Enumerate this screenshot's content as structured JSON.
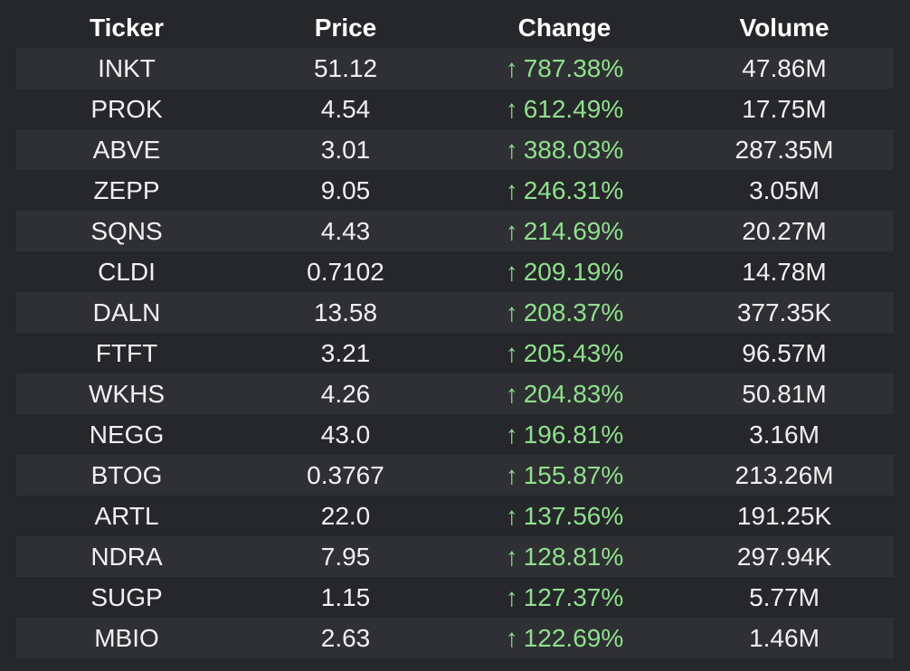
{
  "colors": {
    "background": "#26272b",
    "row_stripe": "#2f3034",
    "text": "#f0f0f0",
    "gain": "#8fe08c"
  },
  "headers": {
    "ticker": "Ticker",
    "price": "Price",
    "change": "Change",
    "volume": "Volume"
  },
  "change_arrow": "↑",
  "rows": [
    {
      "ticker": "INKT",
      "price": "51.12",
      "change": "787.38%",
      "volume": "47.86M"
    },
    {
      "ticker": "PROK",
      "price": "4.54",
      "change": "612.49%",
      "volume": "17.75M"
    },
    {
      "ticker": "ABVE",
      "price": "3.01",
      "change": "388.03%",
      "volume": "287.35M"
    },
    {
      "ticker": "ZEPP",
      "price": "9.05",
      "change": "246.31%",
      "volume": "3.05M"
    },
    {
      "ticker": "SQNS",
      "price": "4.43",
      "change": "214.69%",
      "volume": "20.27M"
    },
    {
      "ticker": "CLDI",
      "price": "0.7102",
      "change": "209.19%",
      "volume": "14.78M"
    },
    {
      "ticker": "DALN",
      "price": "13.58",
      "change": "208.37%",
      "volume": "377.35K"
    },
    {
      "ticker": "FTFT",
      "price": "3.21",
      "change": "205.43%",
      "volume": "96.57M"
    },
    {
      "ticker": "WKHS",
      "price": "4.26",
      "change": "204.83%",
      "volume": "50.81M"
    },
    {
      "ticker": "NEGG",
      "price": "43.0",
      "change": "196.81%",
      "volume": "3.16M"
    },
    {
      "ticker": "BTOG",
      "price": "0.3767",
      "change": "155.87%",
      "volume": "213.26M"
    },
    {
      "ticker": "ARTL",
      "price": "22.0",
      "change": "137.56%",
      "volume": "191.25K"
    },
    {
      "ticker": "NDRA",
      "price": "7.95",
      "change": "128.81%",
      "volume": "297.94K"
    },
    {
      "ticker": "SUGP",
      "price": "1.15",
      "change": "127.37%",
      "volume": "5.77M"
    },
    {
      "ticker": "MBIO",
      "price": "2.63",
      "change": "122.69%",
      "volume": "1.46M"
    }
  ]
}
